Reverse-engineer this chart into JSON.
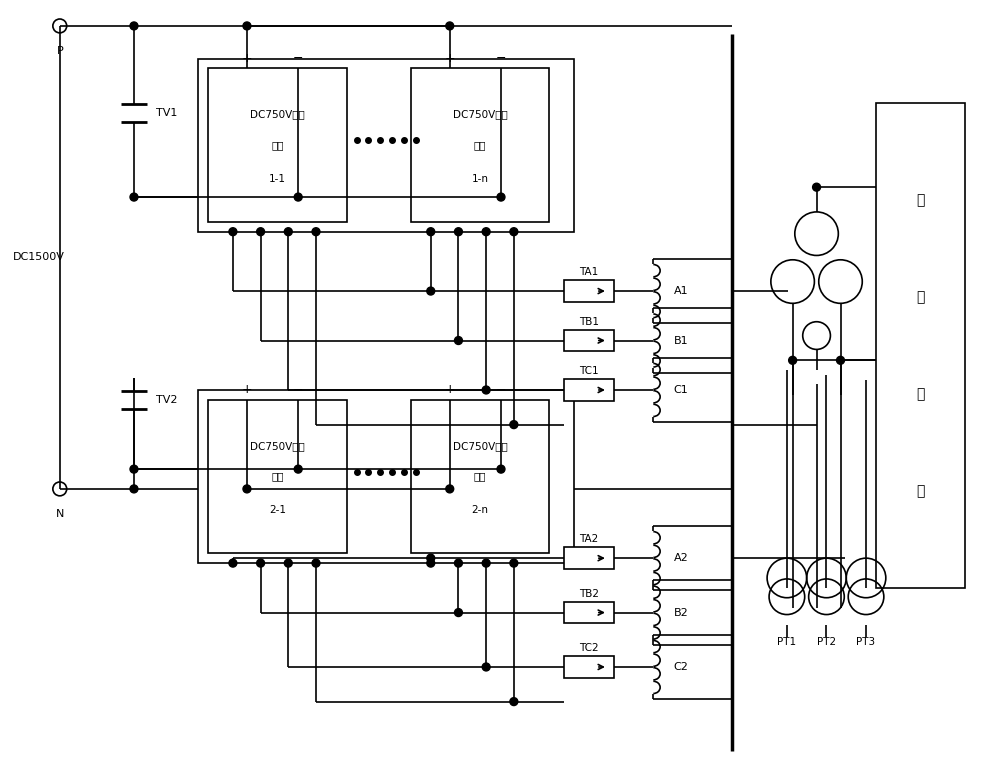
{
  "bg": "#ffffff",
  "lc": "#000000",
  "figsize": [
    10.0,
    7.77
  ],
  "dpi": 100,
  "labels": {
    "P": "P",
    "N": "N",
    "DC1500V": "DC1500V",
    "TV1": "TV1",
    "TV2": "TV2",
    "m11": [
      "DC750V逆变",
      "模块",
      "1-1"
    ],
    "m1n": [
      "DC750V逆变",
      "模块",
      "1-n"
    ],
    "m21": [
      "DC750V逆变",
      "模块",
      "2-1"
    ],
    "m2n": [
      "DC750V逆变",
      "模块",
      "2-n"
    ],
    "TA1": "TA1",
    "TB1": "TB1",
    "TC1": "TC1",
    "TA2": "TA2",
    "TB2": "TB2",
    "TC2": "TC2",
    "A1": "A1",
    "B1": "B1",
    "C1": "C1",
    "A2": "A2",
    "B2": "B2",
    "C2": "C2",
    "PT1": "PT1",
    "PT2": "PT2",
    "PT3": "PT3",
    "hv": [
      "高",
      "压",
      "电",
      "网"
    ]
  }
}
